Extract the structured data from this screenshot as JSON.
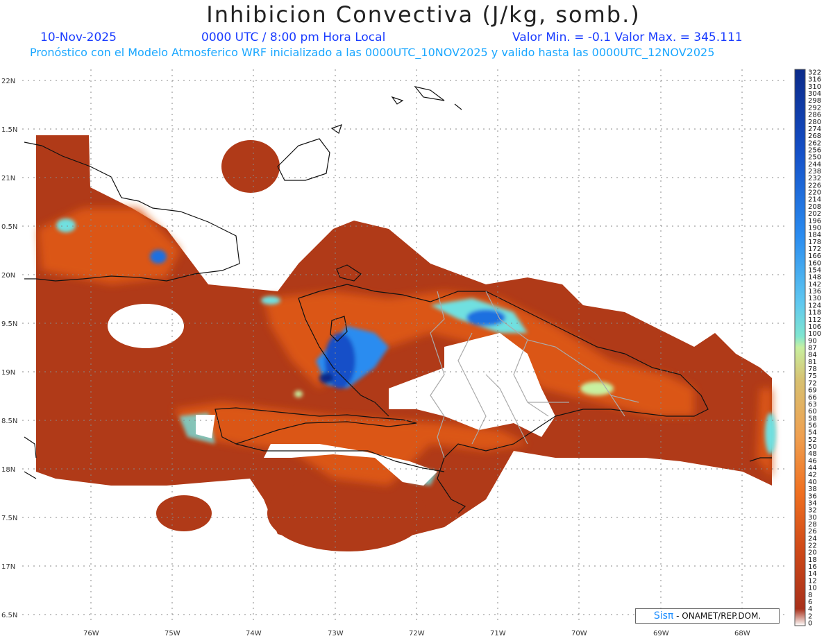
{
  "header": {
    "title": "Inhibicion Convectiva (J/kg, somb.)",
    "date": "10-Nov-2025",
    "time": "0000 UTC / 8:00 pm Hora Local",
    "minmax": "Valor Min. = -0.1  Valor Max. = 345.111",
    "forecast_line": "Pronóstico con el Modelo Atmosferico WRF inicializado a las 0000UTC_10NOV2025 y valido hasta las  0000UTC_12NOV2025"
  },
  "map": {
    "lat_labels": [
      "22N",
      "1.5N",
      "21N",
      "0.5N",
      "20N",
      "9.5N",
      "19N",
      "8.5N",
      "18N",
      "7.5N",
      "17N",
      "6.5N"
    ],
    "lon_labels": [
      "76W",
      "75W",
      "74W",
      "73W",
      "72W",
      "71W",
      "70W",
      "69W",
      "68W"
    ],
    "colorbar_labels": [
      "322",
      "316",
      "310",
      "304",
      "298",
      "292",
      "286",
      "280",
      "274",
      "268",
      "262",
      "256",
      "250",
      "244",
      "238",
      "232",
      "226",
      "220",
      "214",
      "208",
      "202",
      "196",
      "190",
      "184",
      "178",
      "172",
      "166",
      "160",
      "154",
      "148",
      "142",
      "136",
      "130",
      "124",
      "118",
      "112",
      "106",
      "100",
      "90",
      "87",
      "84",
      "81",
      "78",
      "75",
      "72",
      "69",
      "66",
      "63",
      "60",
      "58",
      "56",
      "54",
      "52",
      "50",
      "48",
      "46",
      "44",
      "42",
      "40",
      "38",
      "36",
      "34",
      "32",
      "30",
      "28",
      "26",
      "24",
      "22",
      "20",
      "18",
      "16",
      "14",
      "12",
      "10",
      "8",
      "6",
      "4",
      "2",
      "0"
    ],
    "colors": {
      "base": "#b03a18",
      "mid": "#e05a12",
      "orange": "#f08030",
      "cyan": "#6fe0e0",
      "blue": "#1f6fe0",
      "darkblue": "#0b2a8a"
    }
  },
  "credit": {
    "brand": "Sisπ",
    "text": " - ONAMET/REP.DOM."
  }
}
